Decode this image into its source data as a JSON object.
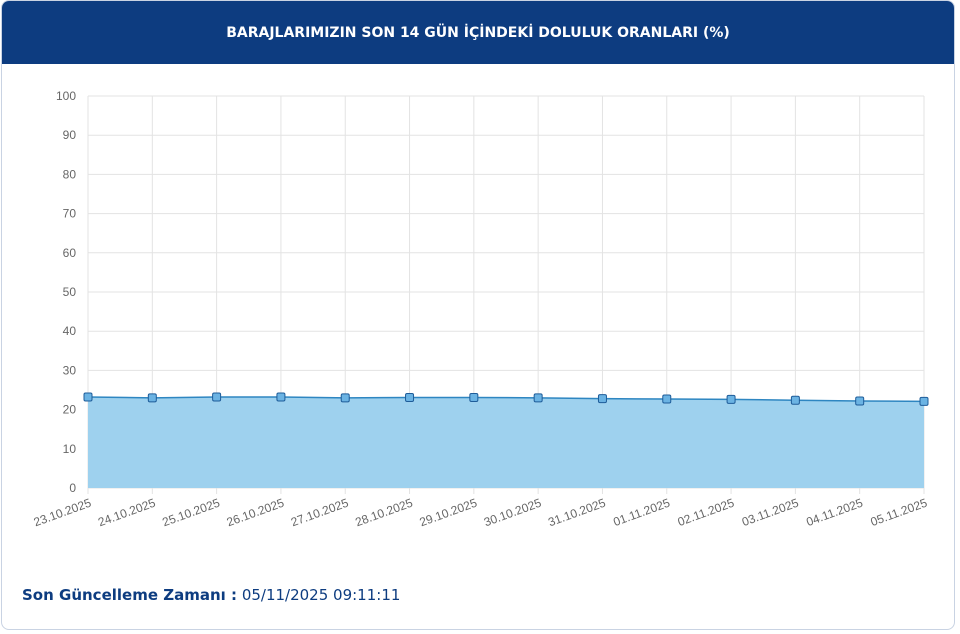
{
  "chart_data": {
    "type": "area",
    "title": "BARAJLARIMIZIN SON 14 GÜN İÇİNDEKİ DOLULUK ORANLARI (%)",
    "categories": [
      "23.10.2025",
      "24.10.2025",
      "25.10.2025",
      "26.10.2025",
      "27.10.2025",
      "28.10.2025",
      "29.10.2025",
      "30.10.2025",
      "31.10.2025",
      "01.11.2025",
      "02.11.2025",
      "03.11.2025",
      "04.11.2025",
      "05.11.2025"
    ],
    "series": [
      {
        "color": "#2e86c1",
        "values": [
          23.2,
          23.0,
          23.2,
          23.2,
          23.0,
          23.1,
          23.1,
          23.0,
          22.8,
          22.7,
          22.6,
          22.4,
          22.2,
          22.1
        ]
      }
    ],
    "ylim": [
      0,
      100
    ],
    "yticks": [
      0,
      10,
      20,
      30,
      40,
      50,
      60,
      70,
      80,
      90,
      100
    ],
    "grid": true
  },
  "footer": {
    "label": "Son Güncelleme Zamanı :",
    "value": "05/11/2025 09:11:11"
  }
}
